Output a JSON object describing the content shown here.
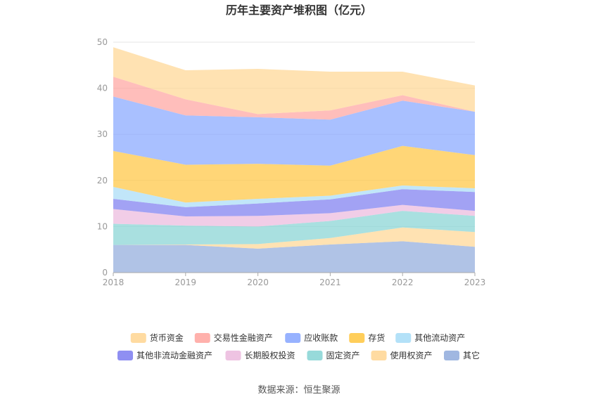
{
  "chart_data": {
    "type": "area",
    "title": "历年主要资产堆积图（亿元）",
    "x": [
      "2018",
      "2019",
      "2020",
      "2021",
      "2022",
      "2023"
    ],
    "ylim": [
      0,
      50
    ],
    "yticks": [
      "0",
      "10",
      "20",
      "30",
      "40",
      "50"
    ],
    "stacked": true,
    "grid": true,
    "legend_position": "bottom",
    "series": [
      {
        "name": "其它",
        "color": "#8faadc",
        "values": [
          6.0,
          6.0,
          5.2,
          6.1,
          6.8,
          5.6
        ]
      },
      {
        "name": "使用权资产",
        "color": "#ffd591",
        "values": [
          0.0,
          0.1,
          1.0,
          1.4,
          3.0,
          3.2
        ]
      },
      {
        "name": "固定资产",
        "color": "#85d3d3",
        "values": [
          4.6,
          4.1,
          3.8,
          3.7,
          3.6,
          3.5
        ]
      },
      {
        "name": "长期股权投资",
        "color": "#ebb8dd",
        "values": [
          3.2,
          2.0,
          2.3,
          1.7,
          1.3,
          1.1
        ]
      },
      {
        "name": "其他非流动金融资产",
        "color": "#7b7bf0",
        "values": [
          2.2,
          2.0,
          2.7,
          3.0,
          3.4,
          4.1
        ]
      },
      {
        "name": "其他流动资产",
        "color": "#a6dcf7",
        "values": [
          2.6,
          1.0,
          1.0,
          0.8,
          0.8,
          0.8
        ]
      },
      {
        "name": "存货",
        "color": "#ffc53d",
        "values": [
          7.8,
          8.2,
          7.6,
          6.5,
          8.6,
          7.2
        ]
      },
      {
        "name": "应收账款",
        "color": "#85a5ff",
        "values": [
          11.8,
          10.7,
          10.1,
          10.0,
          9.8,
          9.4
        ]
      },
      {
        "name": "交易性金融资产",
        "color": "#ffa39e",
        "values": [
          4.3,
          3.5,
          0.7,
          2.0,
          1.2,
          0.0
        ]
      },
      {
        "name": "货币资金",
        "color": "#ffd591",
        "values": [
          6.4,
          6.3,
          9.8,
          8.4,
          5.1,
          5.7
        ]
      }
    ],
    "legend_order": [
      "货币资金",
      "交易性金融资产",
      "应收账款",
      "存货",
      "其他流动资产",
      "其他非流动金融资产",
      "长期股权投资",
      "固定资产",
      "使用权资产",
      "其它"
    ]
  },
  "source": "数据来源：恒生聚源"
}
